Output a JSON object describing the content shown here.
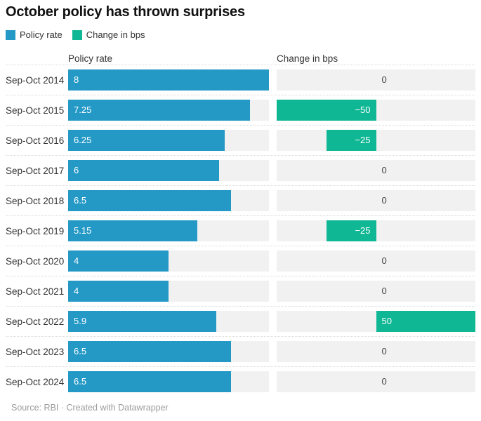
{
  "title": "October policy has thrown surprises",
  "legend": [
    {
      "label": "Policy rate",
      "color": "#2499c6"
    },
    {
      "label": "Change in bps",
      "color": "#0fb794"
    }
  ],
  "columns": {
    "left": "Policy rate",
    "right": "Change in bps"
  },
  "footer": "Source: RBI · Created with Datawrapper",
  "colors": {
    "policy_rate_bar": "#2499c6",
    "change_bar": "#0fb794",
    "track": "#f1f1f1",
    "text": "#333333",
    "value_on_bar": "#ffffff",
    "zero_value_text": "#444444",
    "separator": "#d9d9d9",
    "footer_text": "#9b9b9b"
  },
  "chart_data": {
    "type": "bar",
    "title": "October policy has thrown surprises",
    "categories": [
      "Sep-Oct 2014",
      "Sep-Oct 2015",
      "Sep-Oct 2016",
      "Sep-Oct 2017",
      "Sep-Oct 2018",
      "Sep-Oct 2019",
      "Sep-Oct 2020",
      "Sep-Oct 2021",
      "Sep-Oct 2022",
      "Sep-Oct 2023",
      "Sep-Oct 2024"
    ],
    "series": [
      {
        "name": "Policy rate",
        "values": [
          8,
          7.25,
          6.25,
          6,
          6.5,
          5.15,
          4,
          4,
          5.9,
          6.5,
          6.5
        ],
        "labels": [
          "8",
          "7.25",
          "6.25",
          "6",
          "6.5",
          "5.15",
          "4",
          "4",
          "5.9",
          "6.5",
          "6.5"
        ],
        "xlim": [
          0,
          8
        ]
      },
      {
        "name": "Change in bps",
        "values": [
          0,
          -50,
          -25,
          0,
          0,
          -25,
          0,
          0,
          50,
          0,
          0
        ],
        "labels": [
          "0",
          "−50",
          "−25",
          "0",
          "0",
          "−25",
          "0",
          "0",
          "50",
          "0",
          "0"
        ],
        "xlim": [
          -50,
          50
        ]
      }
    ],
    "xlabel": "",
    "ylabel": "",
    "grid": false,
    "legend_position": "top",
    "orientation": "horizontal"
  }
}
